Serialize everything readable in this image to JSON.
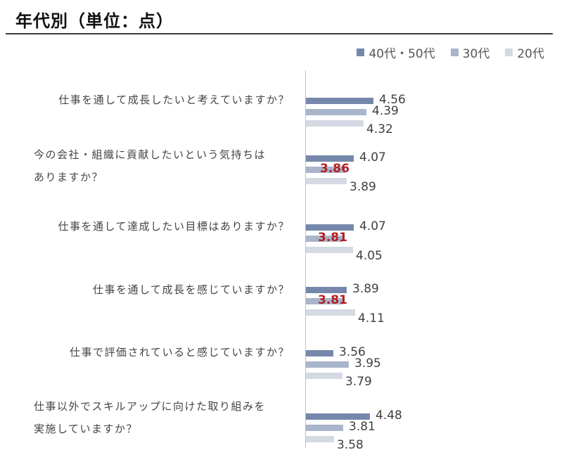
{
  "title": "年代別（単位：点）",
  "colors": {
    "series_40_50": "#7588ab",
    "series_30": "#a9b5cb",
    "series_20": "#d4d9e3",
    "highlight": "#b21f24"
  },
  "chart_data": {
    "type": "bar",
    "orientation": "horizontal",
    "title": "年代別（単位：点）",
    "xlabel": "",
    "ylabel": "",
    "legend_position": "top-right",
    "series": [
      {
        "name": "40代・50代",
        "values": [
          4.56,
          4.07,
          4.07,
          3.89,
          3.56,
          4.48
        ]
      },
      {
        "name": "30代",
        "values": [
          4.39,
          3.86,
          3.81,
          3.81,
          3.95,
          3.81
        ]
      },
      {
        "name": "20代",
        "values": [
          4.32,
          3.89,
          4.05,
          4.11,
          3.79,
          3.58
        ]
      }
    ],
    "categories": [
      {
        "lines": [
          "仕事を通して成長したいと考えていますか？"
        ]
      },
      {
        "lines": [
          "今の会社・組織に貢献したいという気持ちは",
          "ありますか？"
        ]
      },
      {
        "lines": [
          "仕事を通して達成したい目標はありますか？"
        ]
      },
      {
        "lines": [
          "仕事を通して成長を感じていますか？"
        ]
      },
      {
        "lines": [
          "仕事で評価されていると感じていますか？"
        ]
      },
      {
        "lines": [
          "仕事以外でスキルアップに向けた取り組みを",
          "実施していますか？"
        ]
      }
    ],
    "value_labels": [
      [
        "4.56",
        "4.39",
        "4.32"
      ],
      [
        "4.07",
        "3.86",
        "3.89"
      ],
      [
        "4.07",
        "3.81",
        "4.05"
      ],
      [
        "3.89",
        "3.81",
        "4.11"
      ],
      [
        "3.56",
        "3.95",
        "3.79"
      ],
      [
        "4.48",
        "3.81",
        "3.58"
      ]
    ],
    "highlighted": [
      [
        1,
        1
      ],
      [
        2,
        1
      ],
      [
        3,
        1
      ]
    ]
  }
}
